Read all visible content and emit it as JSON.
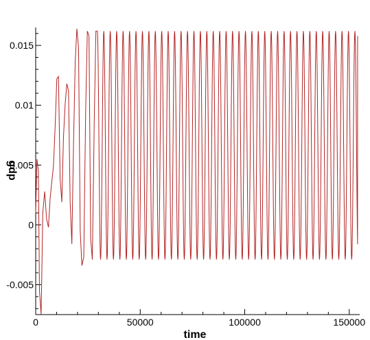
{
  "chart_data": {
    "type": "line",
    "title": "",
    "xlabel": "time",
    "ylabel": "gdp",
    "xlim": [
      0,
      155000
    ],
    "ylim": [
      -0.0075,
      0.0165
    ],
    "xticks": [
      {
        "value": 0,
        "label": "0"
      },
      {
        "value": 50000,
        "label": "50000"
      },
      {
        "value": 100000,
        "label": "100000"
      },
      {
        "value": 150000,
        "label": "150000"
      }
    ],
    "yticks": [
      {
        "value": -0.005,
        "label": "-0.005"
      },
      {
        "value": 0,
        "label": "0"
      },
      {
        "value": 0.005,
        "label": "0.005"
      },
      {
        "value": 0.01,
        "label": "0.01"
      },
      {
        "value": 0.015,
        "label": "0.015"
      }
    ],
    "grid": false,
    "legend": "none",
    "line_color": "#b22222",
    "series": [
      {
        "name": "",
        "transient": {
          "x": [
            0,
            600,
            1300,
            1800,
            2600,
            3400,
            4300,
            5200,
            6100,
            6900,
            7700,
            8500,
            9300,
            10100,
            10900,
            11700,
            12500,
            13300,
            14100,
            14900,
            15700,
            16500,
            17300,
            18100,
            18900,
            19700,
            20500,
            21300,
            22100,
            23000,
            23900,
            24700,
            25500,
            26300,
            27100,
            28000,
            28800,
            29500
          ],
          "y": [
            0.001,
            0.0055,
            0.0045,
            -0.0055,
            -0.0075,
            0.001,
            0.0028,
            0.0005,
            -0.0002,
            0.0022,
            0.0036,
            0.0049,
            0.0082,
            0.0122,
            0.0124,
            0.0038,
            0.0019,
            0.0074,
            0.0101,
            0.0118,
            0.0112,
            0.0018,
            -0.0016,
            0.0068,
            0.0136,
            0.0164,
            0.0148,
            -0.0005,
            -0.0034,
            -0.0027,
            0.0095,
            0.0162,
            0.0158,
            -0.0012,
            -0.0029,
            0.0085,
            0.0162,
            0.0162
          ]
        },
        "steady_oscillation": {
          "start_time": 29500,
          "end_time": 154000,
          "period": 3080,
          "min": -0.0029,
          "max": 0.0162,
          "end_value": 0.0158
        }
      }
    ]
  }
}
